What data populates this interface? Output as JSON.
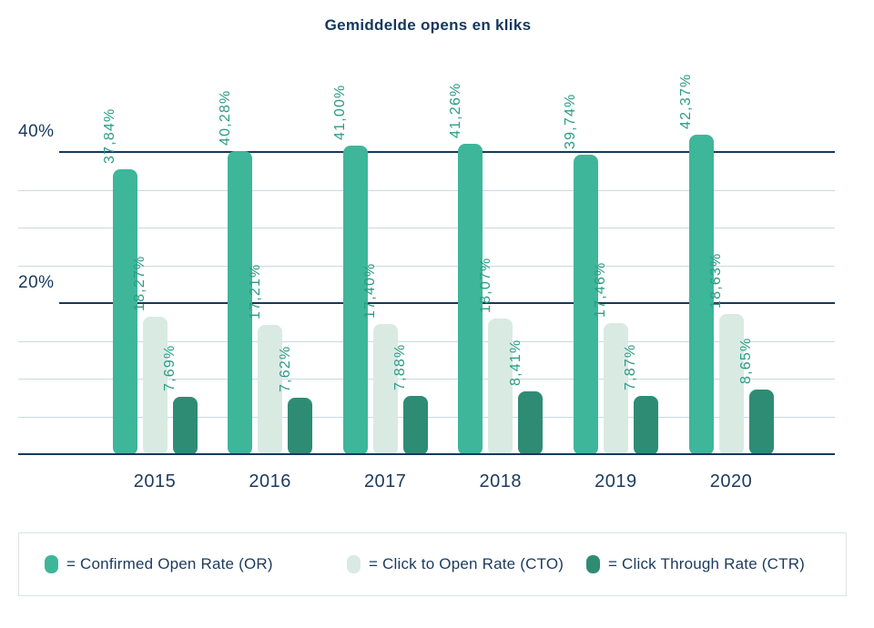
{
  "title": "Gemiddelde opens en kliks",
  "chart_data": {
    "type": "bar",
    "title": "Gemiddelde opens en kliks",
    "categories": [
      "2015",
      "2016",
      "2017",
      "2018",
      "2019",
      "2020"
    ],
    "series": [
      {
        "name": "Confirmed Open Rate (OR)",
        "color": "#3eb69a",
        "values": [
          37.84,
          40.28,
          41.0,
          41.26,
          39.74,
          42.37
        ],
        "labels": [
          "37,84%",
          "40,28%",
          "41,00%",
          "41,26%",
          "39,74%",
          "42,37%"
        ]
      },
      {
        "name": "Click to Open Rate (CTO)",
        "color": "#d9eae3",
        "values": [
          18.27,
          17.21,
          17.4,
          18.07,
          17.46,
          18.63
        ],
        "labels": [
          "18,27%",
          "17,21%",
          "17,40%",
          "18,07%",
          "17,46%",
          "18,63%"
        ]
      },
      {
        "name": "Click Through Rate (CTR)",
        "color": "#2e8c74",
        "values": [
          7.69,
          7.62,
          7.88,
          8.41,
          7.87,
          8.65
        ],
        "labels": [
          "7,69%",
          "7,62%",
          "7,88%",
          "8,41%",
          "7,87%",
          "8,65%"
        ]
      }
    ],
    "xlabel": "",
    "ylabel": "",
    "ylim": [
      0,
      50
    ],
    "y_major_ticks": [
      {
        "value": 40,
        "label": "40%"
      },
      {
        "value": 20,
        "label": "20%"
      }
    ],
    "y_minor_tick_values": [
      5,
      10,
      15,
      25,
      30,
      35
    ],
    "grid": true,
    "value_labels_rotated": true,
    "decimal_separator": ",",
    "legend_position": "bottom"
  },
  "legend": {
    "items": [
      {
        "label": "= Confirmed Open Rate (OR)",
        "color": "#3eb69a"
      },
      {
        "label": "= Click to Open Rate (CTO)",
        "color": "#d9eae3"
      },
      {
        "label": "= Click Through Rate (CTR)",
        "color": "#2e8c74"
      }
    ]
  },
  "colors": {
    "title_text": "#14375e",
    "axis_text": "#17395c",
    "value_label_text": "#2b9b84",
    "major_gridline": "#16395c",
    "minor_gridline": "#c9d9e3",
    "legend_border": "#dfe3e7",
    "background": "#ffffff"
  }
}
